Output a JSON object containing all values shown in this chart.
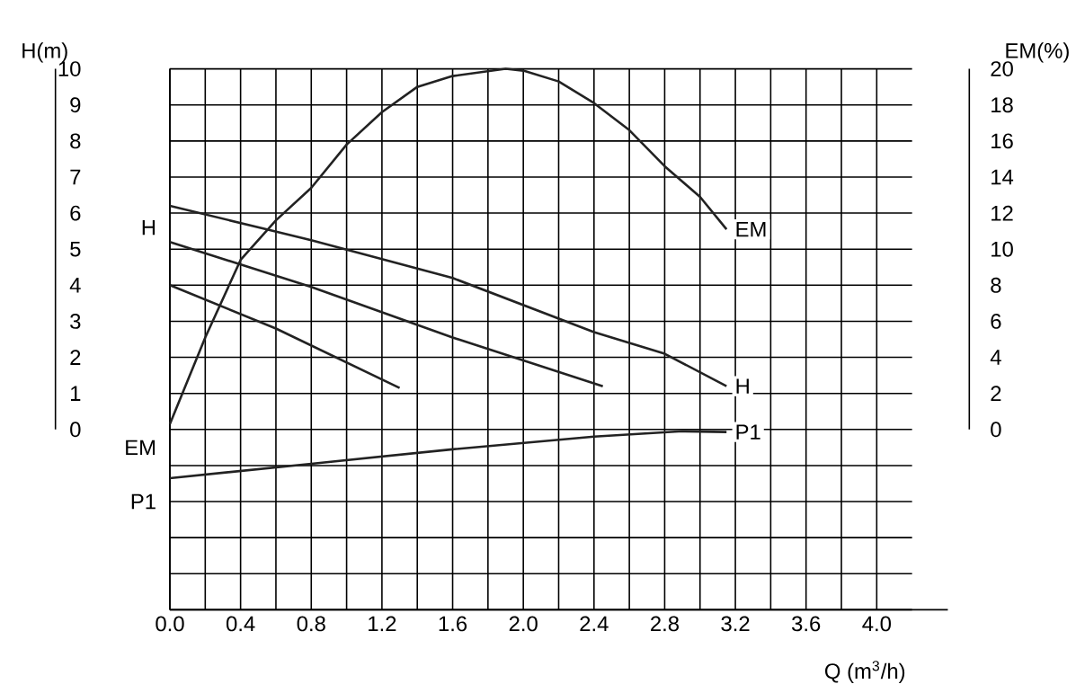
{
  "chart_data": {
    "type": "line",
    "xlabel": "Q (m$^{3}$/h)",
    "ylabel": "H(m)",
    "y2label": "EM(%)",
    "xlim": [
      0,
      4.2
    ],
    "xticks": [
      {
        "value": 0,
        "label": "0.0"
      },
      {
        "value": 0.4,
        "label": "0.4"
      },
      {
        "value": 0.8,
        "label": "0.8"
      },
      {
        "value": 1.2,
        "label": "1.2"
      },
      {
        "value": 1.6,
        "label": "1.6"
      },
      {
        "value": 2.0,
        "label": "2.0"
      },
      {
        "value": 2.4,
        "label": "2.4"
      },
      {
        "value": 2.8,
        "label": "2.8"
      },
      {
        "value": 3.2,
        "label": "3.2"
      },
      {
        "value": 3.6,
        "label": "3.6"
      },
      {
        "value": 4.0,
        "label": "4.0"
      }
    ],
    "ylim": [
      -5,
      10
    ],
    "yticks": [
      {
        "value": -5,
        "label": null
      },
      {
        "value": -4,
        "label": null
      },
      {
        "value": -3,
        "label": null
      },
      {
        "value": -2,
        "label": null
      },
      {
        "value": -1,
        "label": null
      },
      0,
      1,
      2,
      3,
      4,
      5,
      6,
      7,
      8,
      9,
      10
    ],
    "y2lim": [
      -10,
      20
    ],
    "y2ticks": [
      0,
      2,
      4,
      6,
      8,
      10,
      12,
      14,
      16,
      18,
      20
    ],
    "grid": true,
    "line_style": "solid",
    "marker": "none",
    "series": [
      {
        "name": "EM",
        "axis": "y2",
        "color": "#222222",
        "x": [
          0,
          0.2,
          0.4,
          0.6,
          0.8,
          1.0,
          1.2,
          1.4,
          1.6,
          1.9,
          2.0,
          2.2,
          2.4,
          2.6,
          2.8,
          3.0,
          3.15
        ],
        "values": [
          0.3,
          5.1,
          9.4,
          11.6,
          13.4,
          15.8,
          17.6,
          19.0,
          19.6,
          20.0,
          19.9,
          19.3,
          18.1,
          16.6,
          14.6,
          12.9,
          11.1
        ]
      },
      {
        "name": "H",
        "color": "#222222",
        "x": [
          0,
          0.8,
          1.6,
          2.4,
          2.8,
          3.15
        ],
        "values": [
          6.2,
          5.25,
          4.2,
          2.7,
          2.1,
          1.2
        ]
      },
      {
        "color": "#222222",
        "x": [
          0,
          0.8,
          1.6,
          2.45
        ],
        "values": [
          5.2,
          3.95,
          2.55,
          1.2
        ]
      },
      {
        "color": "#222222",
        "x": [
          0,
          0.6,
          1.3
        ],
        "values": [
          4.0,
          2.8,
          1.15
        ]
      },
      {
        "name": "P1",
        "color": "#222222",
        "x": [
          0,
          0.8,
          1.6,
          2.4,
          2.9,
          3.15
        ],
        "values": [
          -1.35,
          -0.95,
          -0.55,
          -0.2,
          -0.05,
          -0.07
        ]
      }
    ],
    "annotations": [
      "H",
      "EM",
      "P1"
    ]
  }
}
